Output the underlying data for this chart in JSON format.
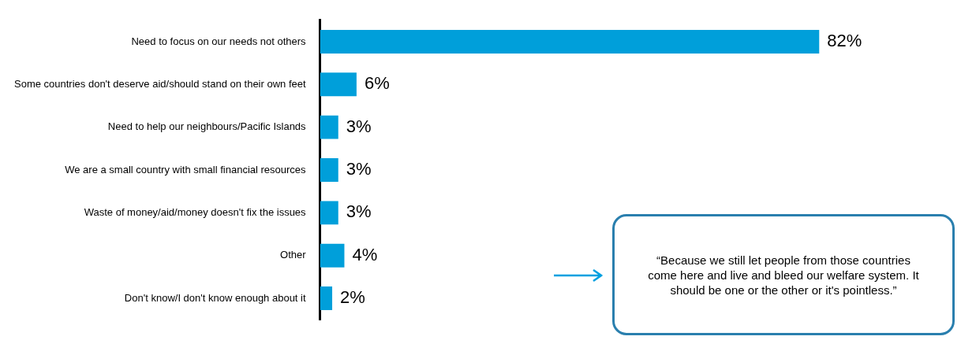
{
  "chart_data": {
    "type": "bar",
    "orientation": "horizontal",
    "categories": [
      "Need to focus on our needs not others",
      "Some countries don't deserve aid/should stand on their own feet",
      "Need to help our neighbours/Pacific Islands",
      "We are a small country with small financial resources",
      "Waste of money/aid/money doesn't fix the issues",
      "Other",
      "Don't know/I don't know enough about it"
    ],
    "values": [
      82,
      6,
      3,
      3,
      3,
      4,
      2
    ],
    "value_labels": [
      "82%",
      "6%",
      "3%",
      "3%",
      "3%",
      "4%",
      "2%"
    ],
    "color": "#009fda",
    "annotations": [
      "“Because we still let people from those countries come here and live and bleed our welfare system. It should be one or the other or it's pointless.”"
    ]
  }
}
